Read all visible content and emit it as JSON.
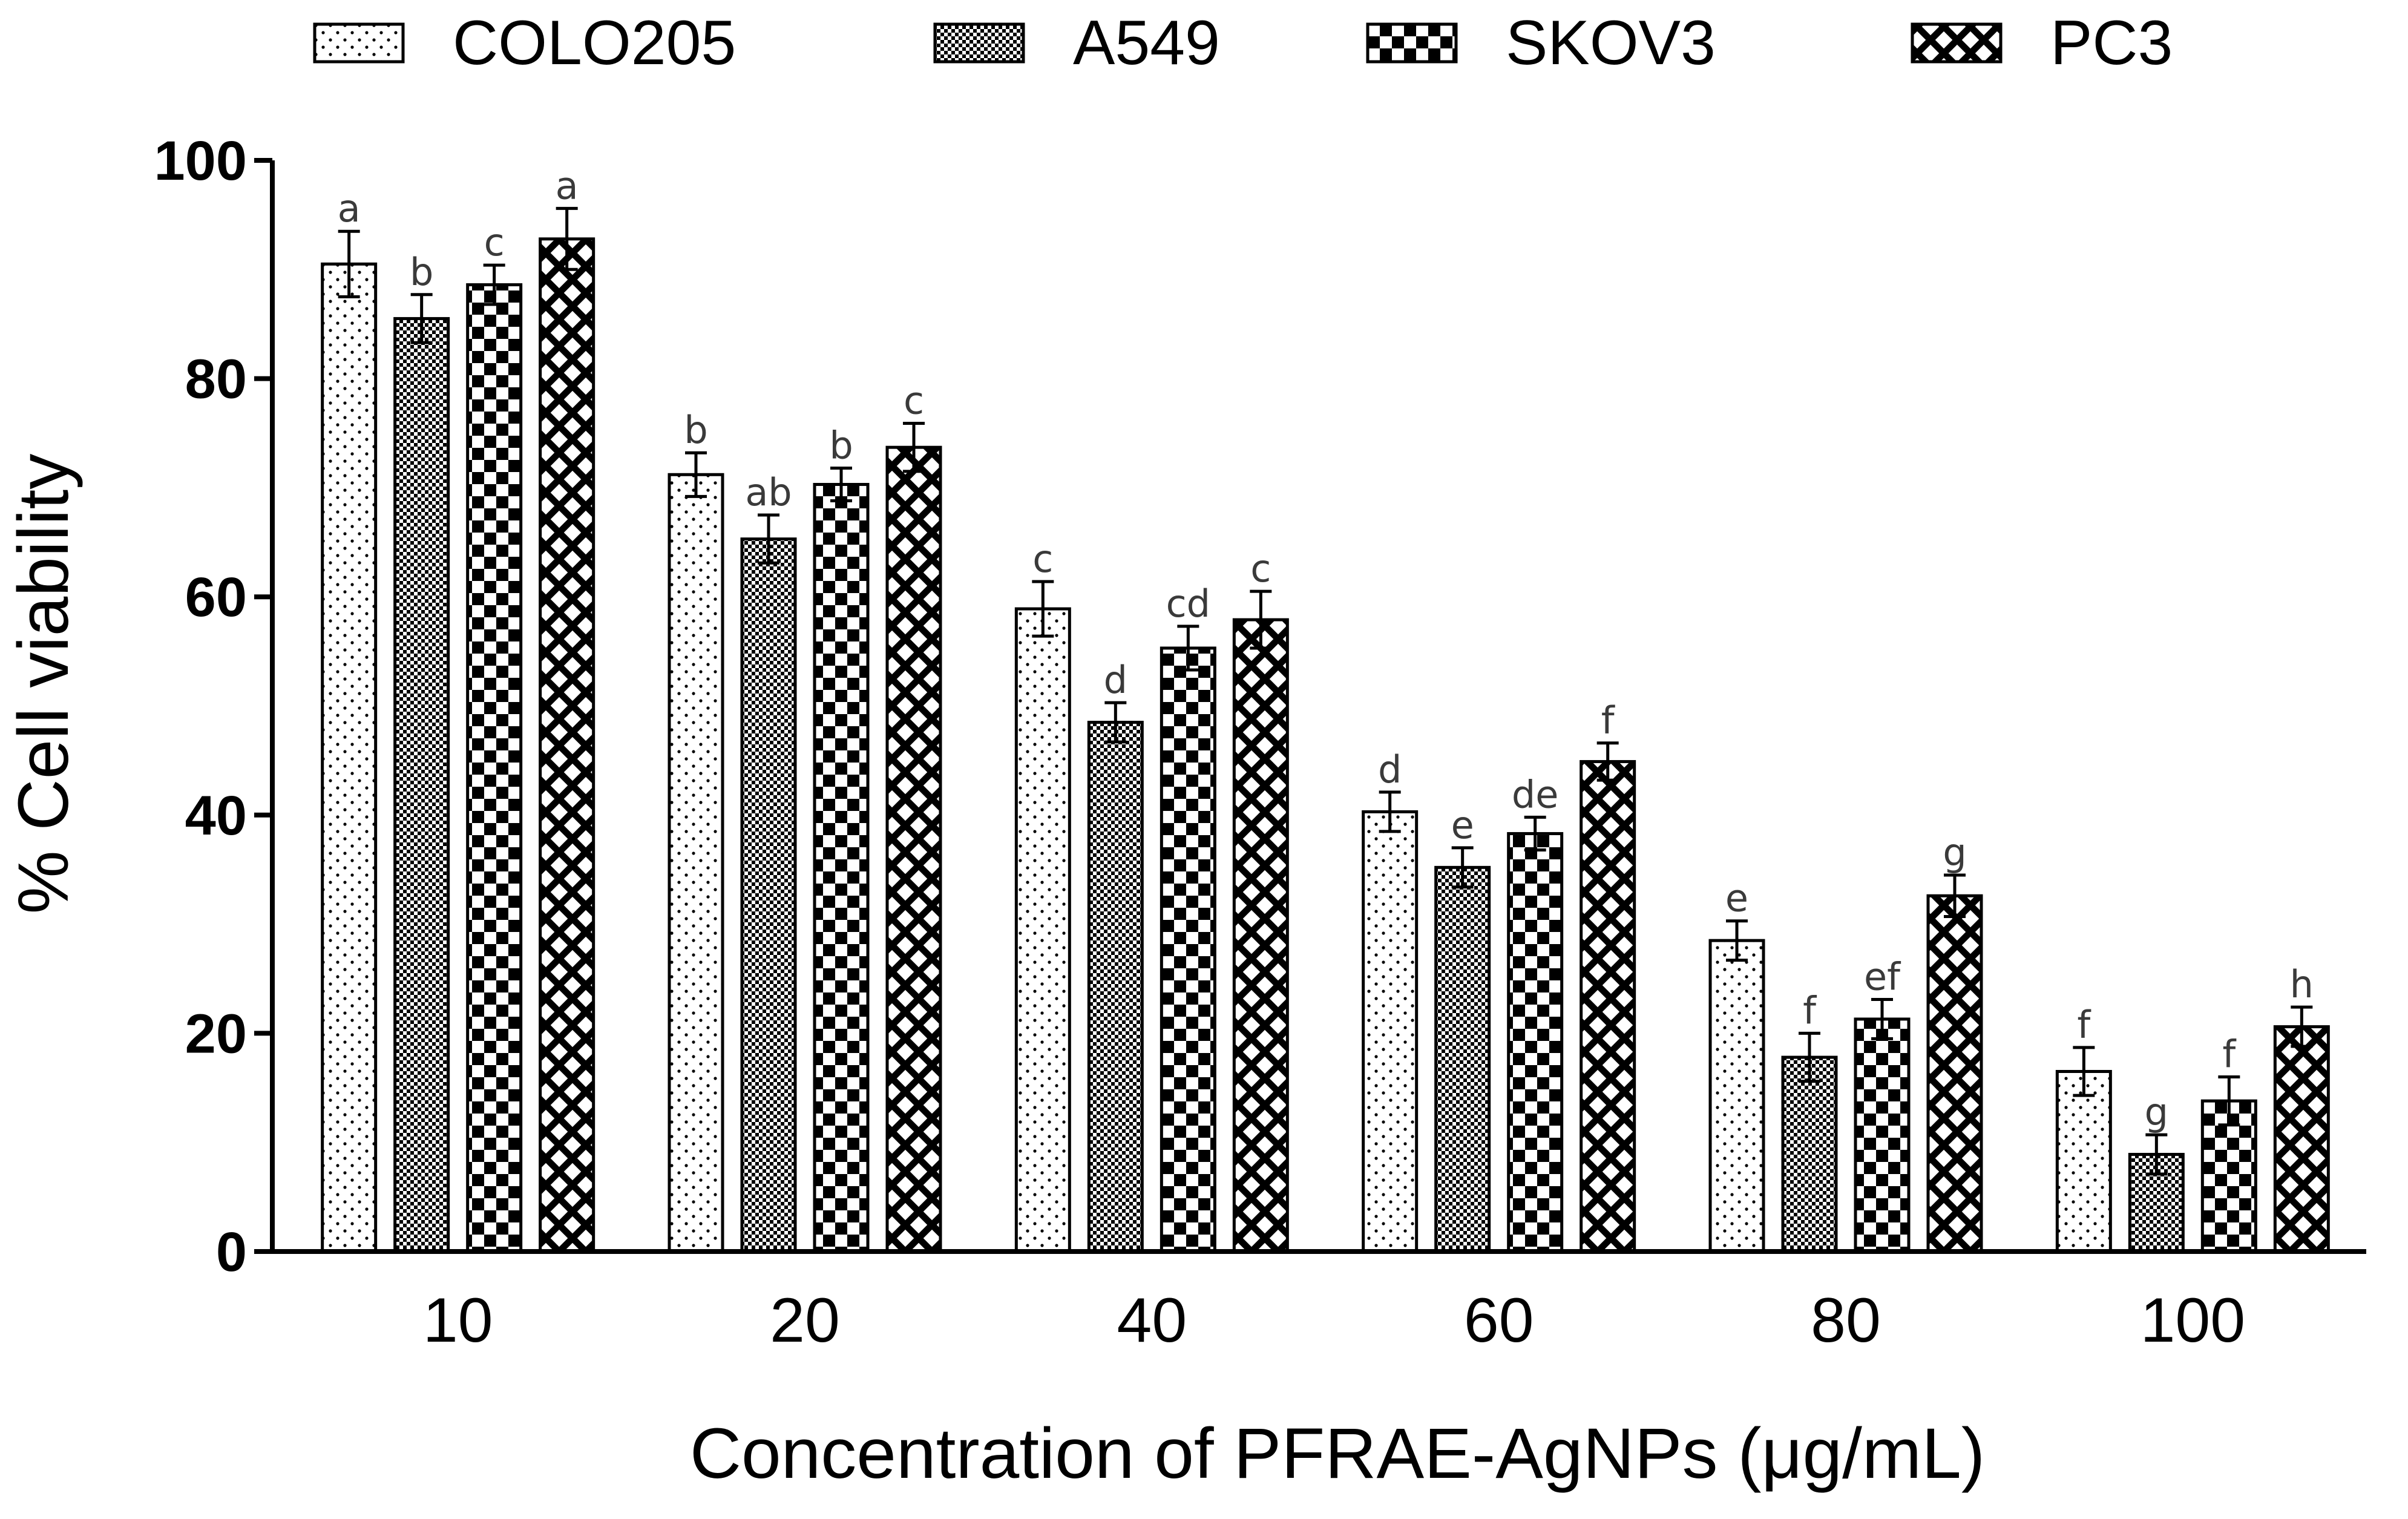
{
  "chart_data": {
    "type": "bar",
    "title": "",
    "xlabel": "Concentration of PFRAE-AgNPs (μg/mL)",
    "ylabel": "% Cell viability",
    "ylim": [
      0,
      100
    ],
    "yticks": [
      0,
      20,
      40,
      60,
      80,
      100
    ],
    "grid": false,
    "legend_position": "top",
    "categories": [
      "10",
      "20",
      "40",
      "60",
      "80",
      "100"
    ],
    "series": [
      {
        "name": "COLO205",
        "pattern": "dots",
        "values": [
          90.5,
          71.2,
          58.9,
          40.3,
          28.5,
          16.5
        ],
        "errors": [
          3.0,
          2.0,
          2.5,
          1.8,
          1.8,
          2.2
        ],
        "labels": [
          "a",
          "b",
          "c",
          "d",
          "e",
          "f"
        ]
      },
      {
        "name": "A549",
        "pattern": "fine-checker",
        "values": [
          85.5,
          65.3,
          48.5,
          35.2,
          17.8,
          8.9
        ],
        "errors": [
          2.2,
          2.2,
          1.8,
          1.8,
          2.2,
          1.8
        ],
        "labels": [
          "b",
          "ab",
          "d",
          "e",
          "f",
          "g"
        ]
      },
      {
        "name": "SKOV3",
        "pattern": "checker",
        "values": [
          88.6,
          70.3,
          55.3,
          38.3,
          21.3,
          13.8
        ],
        "errors": [
          1.8,
          1.5,
          2.0,
          1.5,
          1.8,
          2.2
        ],
        "labels": [
          "c",
          "b",
          "cd",
          "de",
          "ef",
          "f"
        ]
      },
      {
        "name": "PC3",
        "pattern": "cross-hatch",
        "values": [
          92.8,
          73.7,
          57.9,
          44.9,
          32.6,
          20.6
        ],
        "errors": [
          2.8,
          2.2,
          2.6,
          1.7,
          1.9,
          1.8
        ],
        "labels": [
          "a",
          "c",
          "c",
          "f",
          "g",
          "h"
        ]
      }
    ]
  }
}
